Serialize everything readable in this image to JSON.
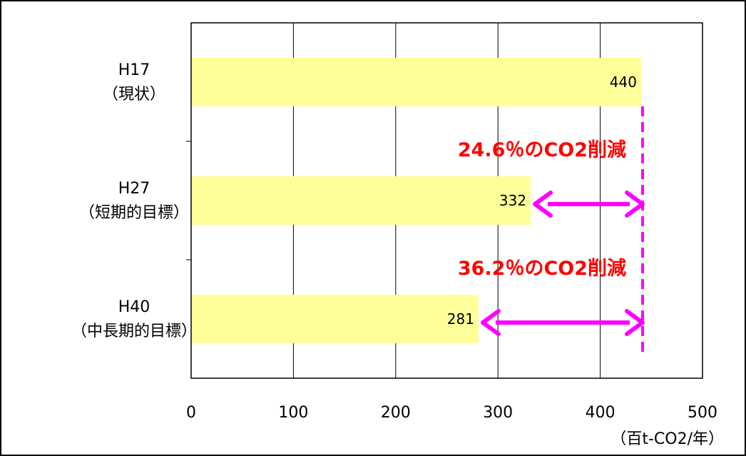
{
  "chart_data": {
    "type": "bar",
    "orientation": "horizontal",
    "categories": [
      [
        "H17",
        "（現状）"
      ],
      [
        "H27",
        "（短期的目標）"
      ],
      [
        "H40",
        "（中長期的目標）"
      ]
    ],
    "values": [
      440,
      332,
      281
    ],
    "value_labels": [
      "440",
      "332",
      "281"
    ],
    "xlim": [
      0,
      500
    ],
    "xticks": [
      0,
      100,
      200,
      300,
      400,
      500
    ],
    "xtick_labels": [
      "0",
      "100",
      "200",
      "300",
      "400",
      "500"
    ],
    "xlabel": "（百t-CO2/年）",
    "grid": "vertical",
    "annotations": [
      {
        "text": "24.6％のCO2削減",
        "from": 332,
        "to": 440,
        "category_index": 1
      },
      {
        "text": "36.2％のCO2削減",
        "from": 281,
        "to": 440,
        "category_index": 2
      }
    ],
    "reference_line_value": 440,
    "colors": {
      "bar": "#FFFF99",
      "grid": "#000000",
      "annotation_text": "#FF0000",
      "arrow": "#FF00FF"
    }
  }
}
